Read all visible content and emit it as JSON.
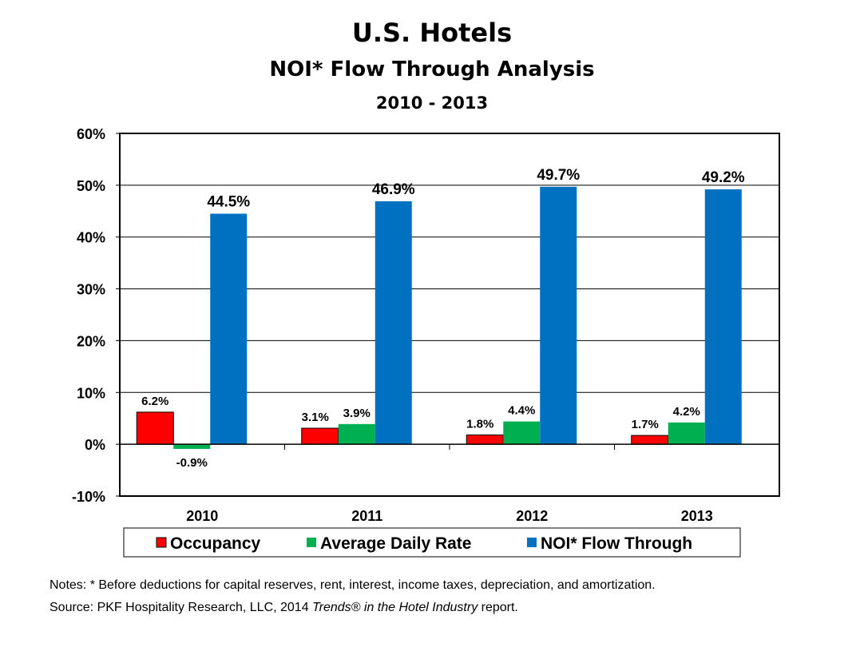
{
  "chart_data": {
    "type": "bar",
    "title": "U.S. Hotels",
    "subtitle": "NOI* Flow Through Analysis",
    "period": "2010 - 2013",
    "xlabel": "",
    "ylabel": "",
    "ylim": [
      -10,
      60
    ],
    "yticks": [
      -10,
      0,
      10,
      20,
      30,
      40,
      50,
      60
    ],
    "ytick_labels": [
      "-10%",
      "0%",
      "10%",
      "20%",
      "30%",
      "40%",
      "50%",
      "60%"
    ],
    "grid": true,
    "legend_position": "bottom",
    "categories": [
      "2010",
      "2011",
      "2012",
      "2013"
    ],
    "series": [
      {
        "name": "Occupancy",
        "color": "#ff0000",
        "values": [
          6.2,
          3.1,
          1.8,
          1.7
        ],
        "labels": [
          "6.2%",
          "3.1%",
          "1.8%",
          "1.7%"
        ]
      },
      {
        "name": "Average Daily Rate",
        "color": "#00b050",
        "values": [
          -0.9,
          3.9,
          4.4,
          4.2
        ],
        "labels": [
          "-0.9%",
          "3.9%",
          "4.4%",
          "4.2%"
        ]
      },
      {
        "name": "NOI* Flow Through",
        "color": "#0070c0",
        "values": [
          44.5,
          46.9,
          49.7,
          49.2
        ],
        "labels": [
          "44.5%",
          "46.9%",
          "49.7%",
          "49.2%"
        ]
      }
    ]
  },
  "notes": {
    "line1": "Notes: * Before deductions for capital reserves, rent, interest, income taxes, depreciation, and amortization.",
    "line2_prefix": "Source: PKF Hospitality Research, LLC, 2014 ",
    "line2_italic": "Trends® in the Hotel Industry",
    "line2_suffix": " report."
  }
}
